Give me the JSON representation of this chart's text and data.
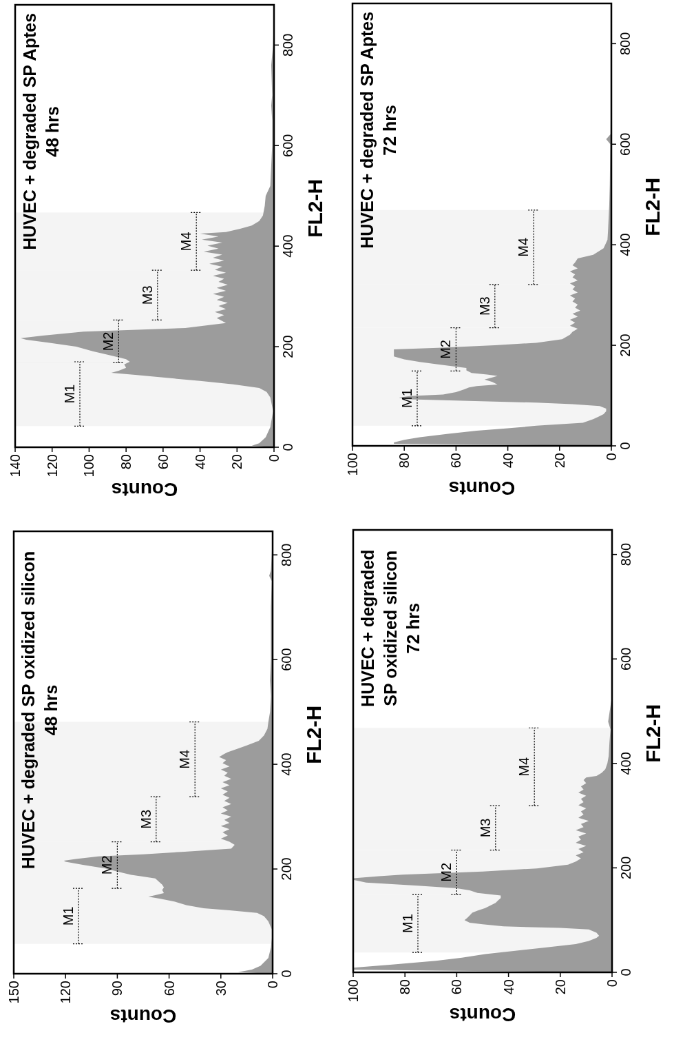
{
  "chart_data": [
    {
      "type": "area",
      "orientation": "horizontal",
      "title": "HUVEC + degraded SP oxidized silicon\n48 hrs",
      "ylabel": "FL2-H",
      "xlabel": "Counts",
      "color": "#9c9c9c",
      "ylim": [
        0,
        845
      ],
      "yticks": [
        0,
        200,
        400,
        600,
        800
      ],
      "xlim": [
        150,
        0
      ],
      "xticks": [
        150,
        120,
        90,
        60,
        30,
        0
      ],
      "x": [
        0,
        3,
        8,
        15,
        30,
        50,
        68,
        85,
        100,
        110,
        116,
        121,
        125,
        131,
        138,
        143,
        147,
        150,
        154,
        160,
        165,
        170,
        176,
        182,
        189,
        195,
        201,
        208,
        214,
        216,
        219,
        224,
        228,
        233,
        239,
        246,
        252,
        258,
        264,
        270,
        276,
        282,
        288,
        294,
        300,
        306,
        312,
        318,
        324,
        330,
        336,
        342,
        348,
        354,
        360,
        366,
        372,
        378,
        384,
        390,
        396,
        402,
        408,
        414,
        420,
        423,
        430,
        436,
        445,
        455,
        468,
        480,
        500,
        530,
        560,
        600,
        650,
        700,
        750,
        760,
        770,
        800,
        845
      ],
      "values": [
        0,
        20,
        12,
        7,
        2.5,
        1,
        0.5,
        0.5,
        2.5,
        5,
        9,
        25,
        40,
        50,
        57,
        65,
        72,
        68,
        63,
        64,
        63,
        64,
        66,
        68,
        82,
        90,
        97,
        110,
        120,
        121,
        114,
        101,
        75,
        51,
        24,
        22,
        25,
        30,
        26,
        29,
        25,
        30,
        25,
        28,
        24,
        30,
        26,
        29,
        24,
        28,
        25,
        29,
        26,
        30,
        25,
        29,
        24,
        28,
        26,
        30,
        25,
        29,
        27,
        31,
        28,
        26,
        20,
        15,
        8,
        5,
        3,
        2.5,
        1.5,
        1,
        1.5,
        1,
        1,
        1,
        0.5,
        2,
        1,
        0.5,
        0
      ],
      "bands": [
        {
          "axis": "y",
          "from": 57,
          "to": 163,
          "label": "M1"
        },
        {
          "axis": "y",
          "from": 163,
          "to": 252,
          "label": "M2"
        },
        {
          "axis": "y",
          "from": 252,
          "to": 338,
          "label": "M3"
        },
        {
          "axis": "y",
          "from": 338,
          "to": 481,
          "label": "M4"
        }
      ]
    },
    {
      "type": "area",
      "orientation": "horizontal",
      "title": "HUVEC + degraded SP Aptes\n48 hrs",
      "ylabel": "FL2-H",
      "xlabel": "Counts",
      "color": "#9c9c9c",
      "ylim": [
        0,
        880
      ],
      "yticks": [
        0,
        200,
        400,
        600,
        800
      ],
      "xlim": [
        140,
        0
      ],
      "xticks": [
        140,
        120,
        100,
        80,
        60,
        40,
        20,
        0
      ],
      "x": [
        0,
        3,
        8,
        20,
        40,
        72,
        99,
        110,
        118,
        125,
        132,
        138,
        144,
        148,
        152,
        158,
        165,
        170,
        175,
        178,
        184,
        191,
        200,
        208,
        214,
        217,
        222,
        230,
        237,
        247,
        257,
        263,
        269,
        275,
        281,
        287,
        293,
        299,
        305,
        311,
        317,
        323,
        329,
        335,
        341,
        347,
        353,
        359,
        365,
        371,
        377,
        383,
        389,
        395,
        401,
        407,
        413,
        419,
        425,
        428,
        435,
        441,
        450,
        461,
        480,
        500,
        520,
        560,
        600,
        650,
        680,
        700,
        760,
        800,
        880
      ],
      "values": [
        0,
        12,
        8,
        4.5,
        2,
        0.5,
        2,
        4,
        8,
        22,
        40,
        58,
        75,
        88,
        84,
        80,
        81,
        78,
        80,
        83,
        90,
        98,
        107,
        122,
        134,
        137,
        125,
        103,
        48,
        26,
        31,
        27,
        32,
        26,
        30,
        25,
        31,
        27,
        33,
        26,
        31,
        25,
        30,
        27,
        33,
        26,
        32,
        28,
        35,
        27,
        33,
        28,
        38,
        30,
        36,
        28,
        39,
        30,
        40,
        26,
        18,
        12,
        8,
        6,
        5,
        4.5,
        2,
        1.5,
        1,
        1,
        1.5,
        1,
        1.5,
        0.5,
        0
      ],
      "bands": [
        {
          "axis": "y",
          "from": 42,
          "to": 170,
          "label": "M1"
        },
        {
          "axis": "y",
          "from": 168,
          "to": 253,
          "label": "M2"
        },
        {
          "axis": "y",
          "from": 253,
          "to": 352,
          "label": "M3"
        },
        {
          "axis": "y",
          "from": 352,
          "to": 467,
          "label": "M4"
        }
      ]
    },
    {
      "type": "area",
      "orientation": "horizontal",
      "title": "HUVEC + degraded\nSP oxidized silicon\n72 hrs",
      "ylabel": "FL2-H",
      "xlabel": "Counts",
      "color": "#9c9c9c",
      "ylim": [
        0,
        847
      ],
      "yticks": [
        0,
        200,
        400,
        600,
        800
      ],
      "xlim": [
        100,
        0
      ],
      "xticks": [
        100,
        80,
        60,
        40,
        20,
        0
      ],
      "x": [
        0,
        5,
        9,
        15,
        22,
        28,
        35,
        41,
        47,
        54,
        60,
        66,
        70,
        76,
        82,
        85,
        88,
        92,
        95,
        100,
        104,
        109,
        114,
        118,
        123,
        128,
        133,
        138,
        142,
        147,
        152,
        157,
        161,
        166,
        172,
        177,
        180,
        184,
        187,
        193,
        199,
        206,
        212,
        218,
        224,
        230,
        236,
        242,
        248,
        254,
        260,
        266,
        272,
        278,
        284,
        290,
        296,
        302,
        308,
        314,
        320,
        326,
        332,
        338,
        344,
        350,
        356,
        362,
        368,
        373,
        376,
        382,
        389,
        400,
        414,
        440,
        465,
        480,
        520,
        600,
        700,
        847
      ],
      "values": [
        0,
        100,
        100,
        85,
        68,
        58,
        49,
        38,
        27,
        14,
        9,
        6,
        5,
        6,
        9,
        20,
        42,
        50,
        55,
        57,
        56,
        55,
        54,
        52,
        49,
        47,
        45,
        44,
        43,
        43,
        52,
        55,
        60,
        75,
        95,
        100,
        100,
        90,
        81,
        50,
        29,
        17,
        14,
        12,
        14,
        11,
        13,
        10,
        14,
        12,
        13,
        10,
        14,
        11,
        12,
        9,
        13,
        11,
        12,
        10,
        13,
        11,
        12,
        10,
        13,
        11,
        12,
        10,
        11,
        10,
        6,
        4,
        2.6,
        1.8,
        1.3,
        1,
        0.6,
        1.5,
        0.3,
        0.3,
        0,
        0
      ],
      "bands": [
        {
          "axis": "y",
          "from": 38,
          "to": 149,
          "label": "M1"
        },
        {
          "axis": "y",
          "from": 149,
          "to": 234,
          "label": "M2"
        },
        {
          "axis": "y",
          "from": 234,
          "to": 319,
          "label": "M3"
        },
        {
          "axis": "y",
          "from": 319,
          "to": 468,
          "label": "M4"
        }
      ]
    },
    {
      "type": "area",
      "orientation": "horizontal",
      "title": "HUVEC + degraded SP Aptes\n72 hrs",
      "ylabel": "FL2-H",
      "xlabel": "Counts",
      "color": "#9c9c9c",
      "ylim": [
        0,
        880
      ],
      "yticks": [
        0,
        200,
        400,
        600,
        800
      ],
      "xlim": [
        100,
        0
      ],
      "xticks": [
        100,
        80,
        60,
        40,
        20,
        0
      ],
      "x": [
        0,
        4,
        7,
        12,
        17,
        24,
        30,
        35,
        40,
        46,
        53,
        58,
        63,
        69,
        74,
        79,
        83,
        86,
        90,
        93,
        96,
        99,
        102,
        107,
        112,
        116,
        119,
        122,
        127,
        132,
        136,
        139,
        142,
        145,
        150,
        155,
        162,
        167,
        172,
        178,
        185,
        192,
        195,
        200,
        205,
        212,
        221,
        227,
        233,
        239,
        245,
        251,
        257,
        263,
        269,
        275,
        281,
        287,
        293,
        299,
        305,
        311,
        317,
        323,
        329,
        335,
        341,
        347,
        353,
        359,
        365,
        373,
        380,
        393,
        410,
        426,
        480,
        520,
        560,
        600,
        610,
        620,
        700,
        880
      ],
      "values": [
        0,
        84,
        84,
        80,
        74,
        63,
        52,
        40,
        29,
        11,
        7,
        5,
        3,
        2,
        2,
        4.5,
        15,
        29,
        60,
        80,
        82,
        78,
        65,
        60,
        57,
        55,
        52,
        44,
        46,
        49,
        46,
        44,
        48,
        54,
        56,
        56,
        67,
        74,
        80,
        84,
        84,
        84,
        67,
        45,
        29,
        19,
        16,
        15,
        13,
        16,
        14,
        16,
        13,
        15,
        12,
        14,
        13,
        15,
        14,
        16,
        13,
        15,
        14,
        16,
        13,
        15,
        14,
        16,
        13,
        15,
        14,
        13,
        7,
        3,
        1.5,
        1.3,
        0.8,
        0.6,
        0.5,
        0.4,
        2,
        0.3,
        0.2,
        0
      ],
      "bands": [
        {
          "axis": "y",
          "from": 40,
          "to": 149,
          "label": "M1"
        },
        {
          "axis": "y",
          "from": 149,
          "to": 235,
          "label": "M2"
        },
        {
          "axis": "y",
          "from": 235,
          "to": 321,
          "label": "M3"
        },
        {
          "axis": "y",
          "from": 321,
          "to": 469,
          "label": "M4"
        }
      ]
    }
  ]
}
